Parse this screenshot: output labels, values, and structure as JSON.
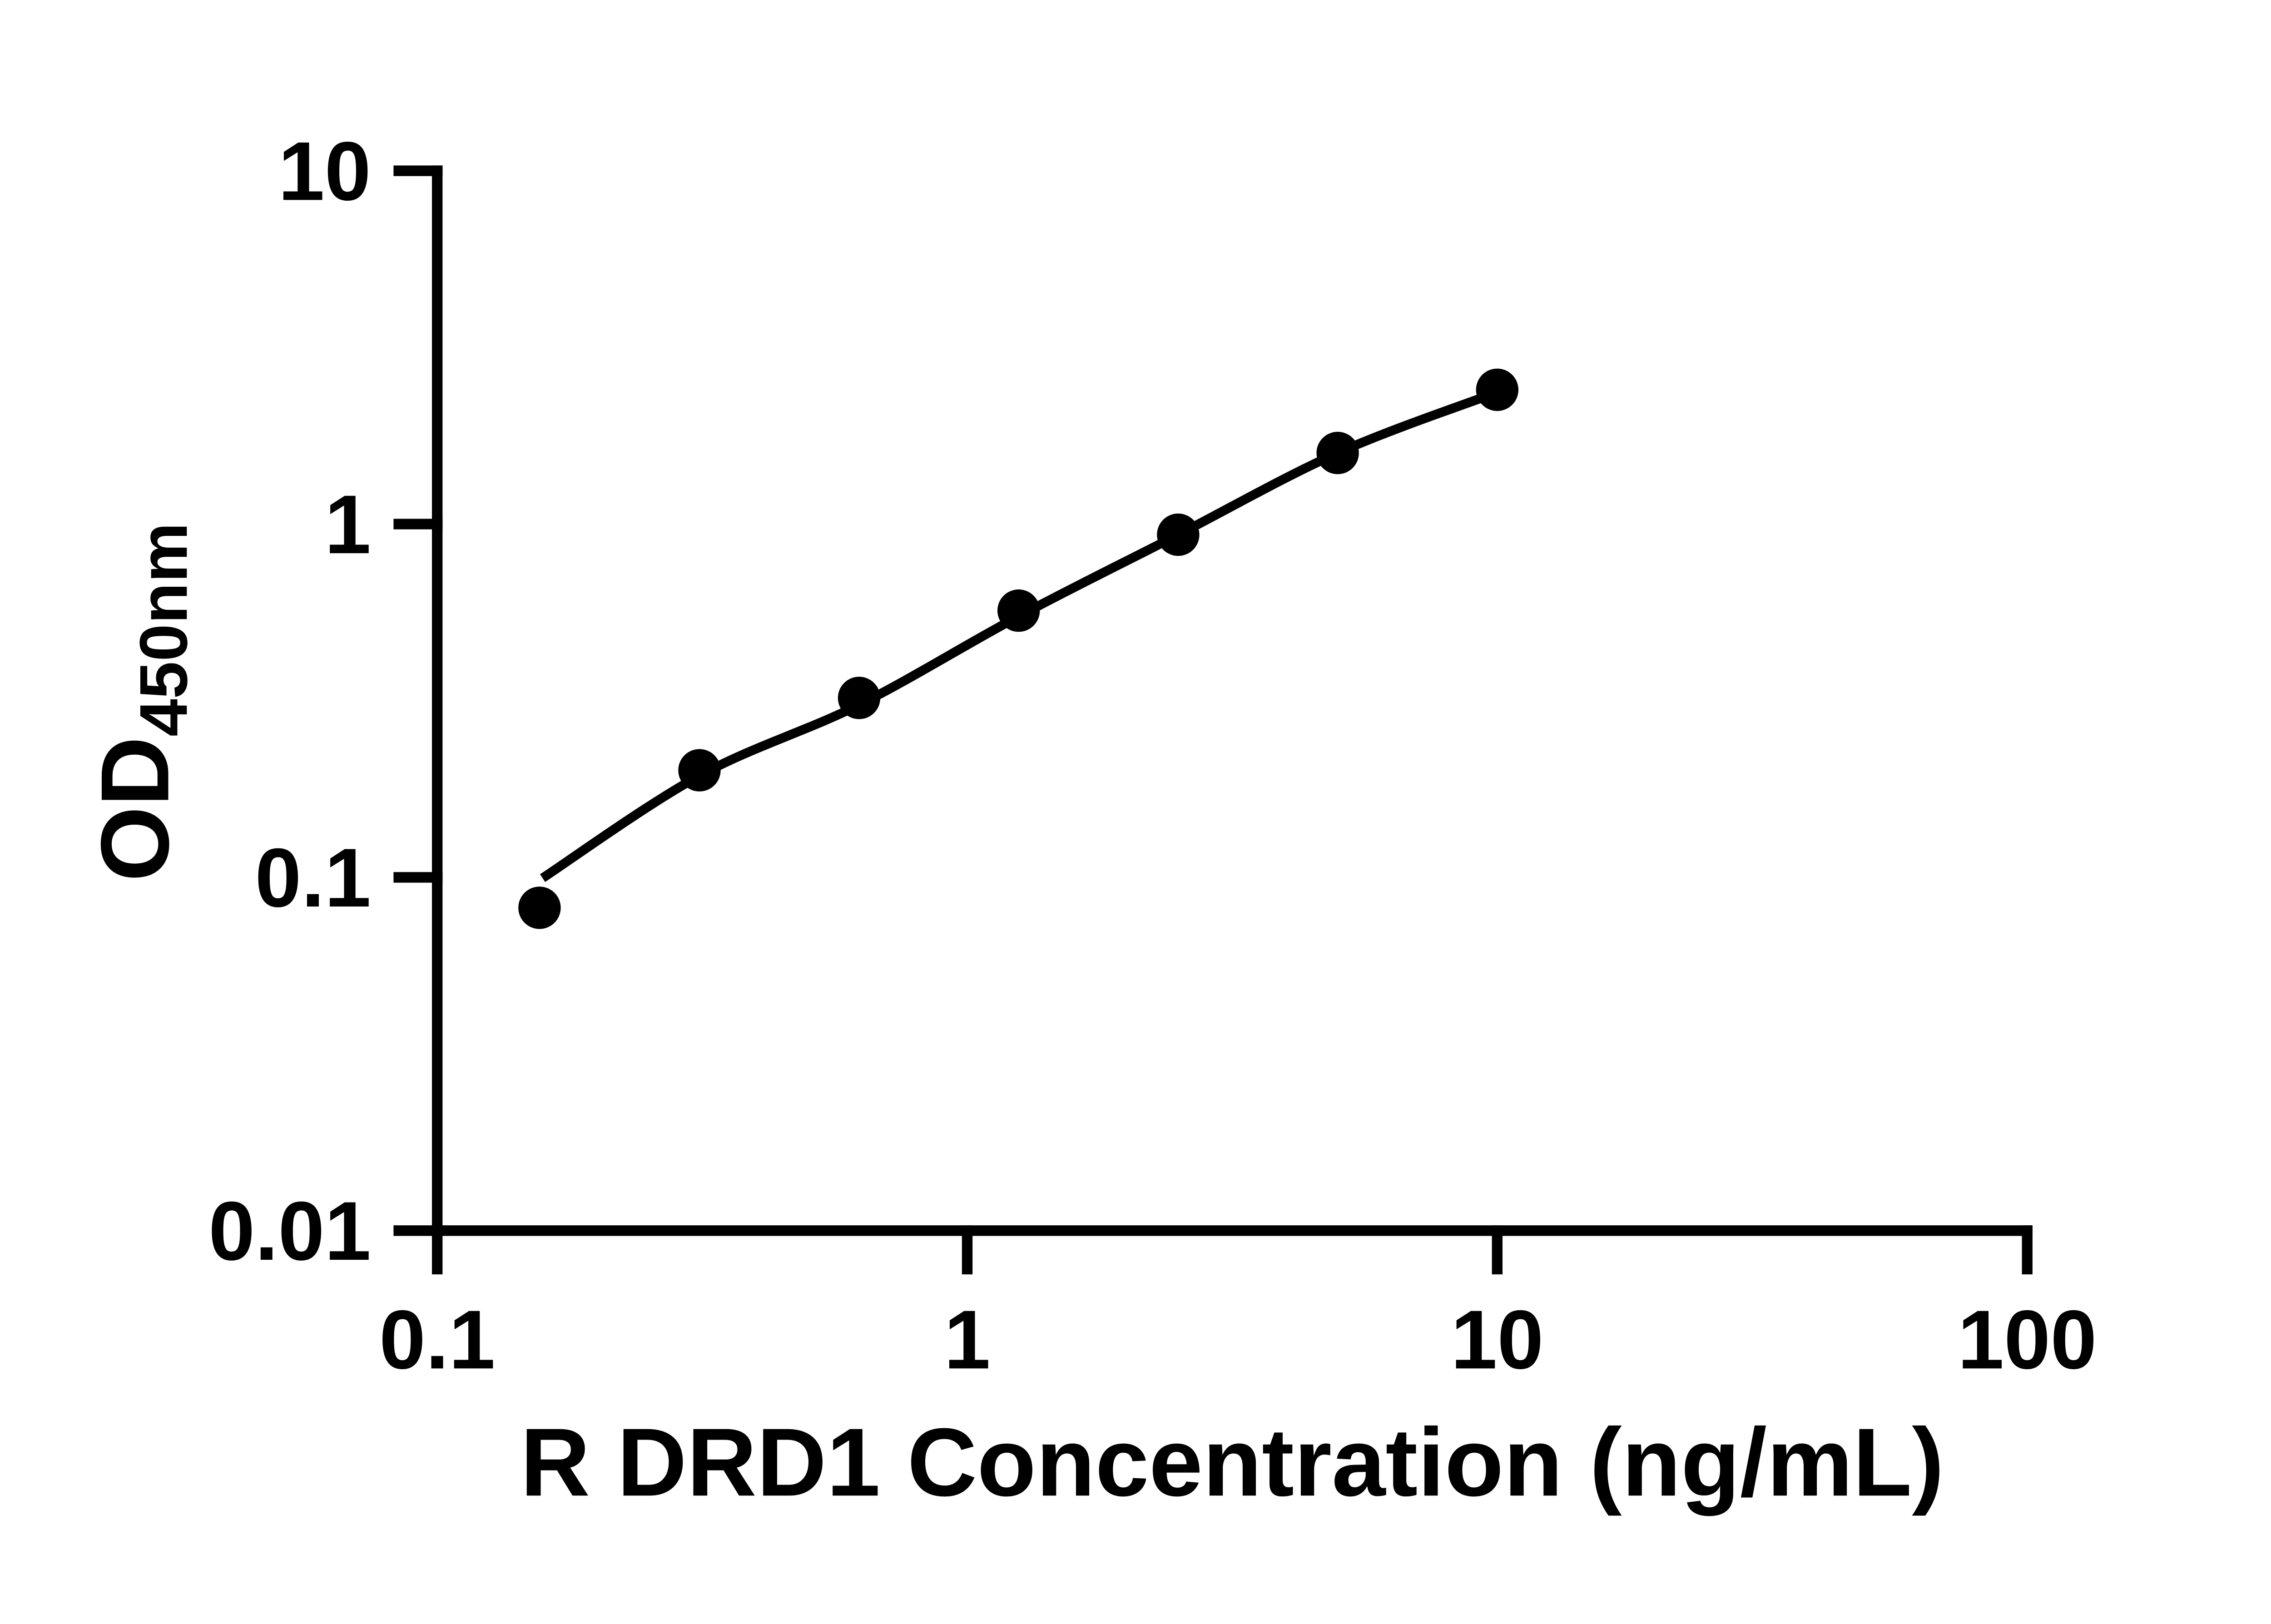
{
  "chart_data": {
    "type": "scatter",
    "title": "",
    "xlabel": "R DRD1 Concentration (ng/mL)",
    "ylabel_main": "OD",
    "ylabel_sub": "450nm",
    "x_scale": "log",
    "y_scale": "log",
    "xlim": [
      0.1,
      100
    ],
    "ylim": [
      0.01,
      10
    ],
    "grid": false,
    "legend": null,
    "x_ticks": [
      {
        "v": 0.1,
        "label": "0.1"
      },
      {
        "v": 1,
        "label": "1"
      },
      {
        "v": 10,
        "label": "10"
      },
      {
        "v": 100,
        "label": "100"
      }
    ],
    "y_ticks": [
      {
        "v": 0.01,
        "label": "0.01"
      },
      {
        "v": 0.1,
        "label": "0.1"
      },
      {
        "v": 1,
        "label": "1"
      },
      {
        "v": 10,
        "label": "10"
      }
    ],
    "series_points": [
      {
        "x": 0.156,
        "y": 0.082
      },
      {
        "x": 0.3125,
        "y": 0.201
      },
      {
        "x": 0.625,
        "y": 0.322
      },
      {
        "x": 1.25,
        "y": 0.569
      },
      {
        "x": 2.5,
        "y": 0.933
      },
      {
        "x": 5,
        "y": 1.59
      },
      {
        "x": 10,
        "y": 2.4
      }
    ],
    "fit_curve_points": [
      {
        "x": 0.158,
        "y": 0.0995
      },
      {
        "x": 0.3125,
        "y": 0.194
      },
      {
        "x": 0.625,
        "y": 0.308
      },
      {
        "x": 1.25,
        "y": 0.548
      },
      {
        "x": 2.5,
        "y": 0.933
      },
      {
        "x": 5,
        "y": 1.59
      },
      {
        "x": 10,
        "y": 2.36
      }
    ],
    "colors": {
      "foreground": "#000000",
      "background": "#ffffff"
    },
    "marker": {
      "shape": "circle",
      "radius_px": 16
    }
  }
}
